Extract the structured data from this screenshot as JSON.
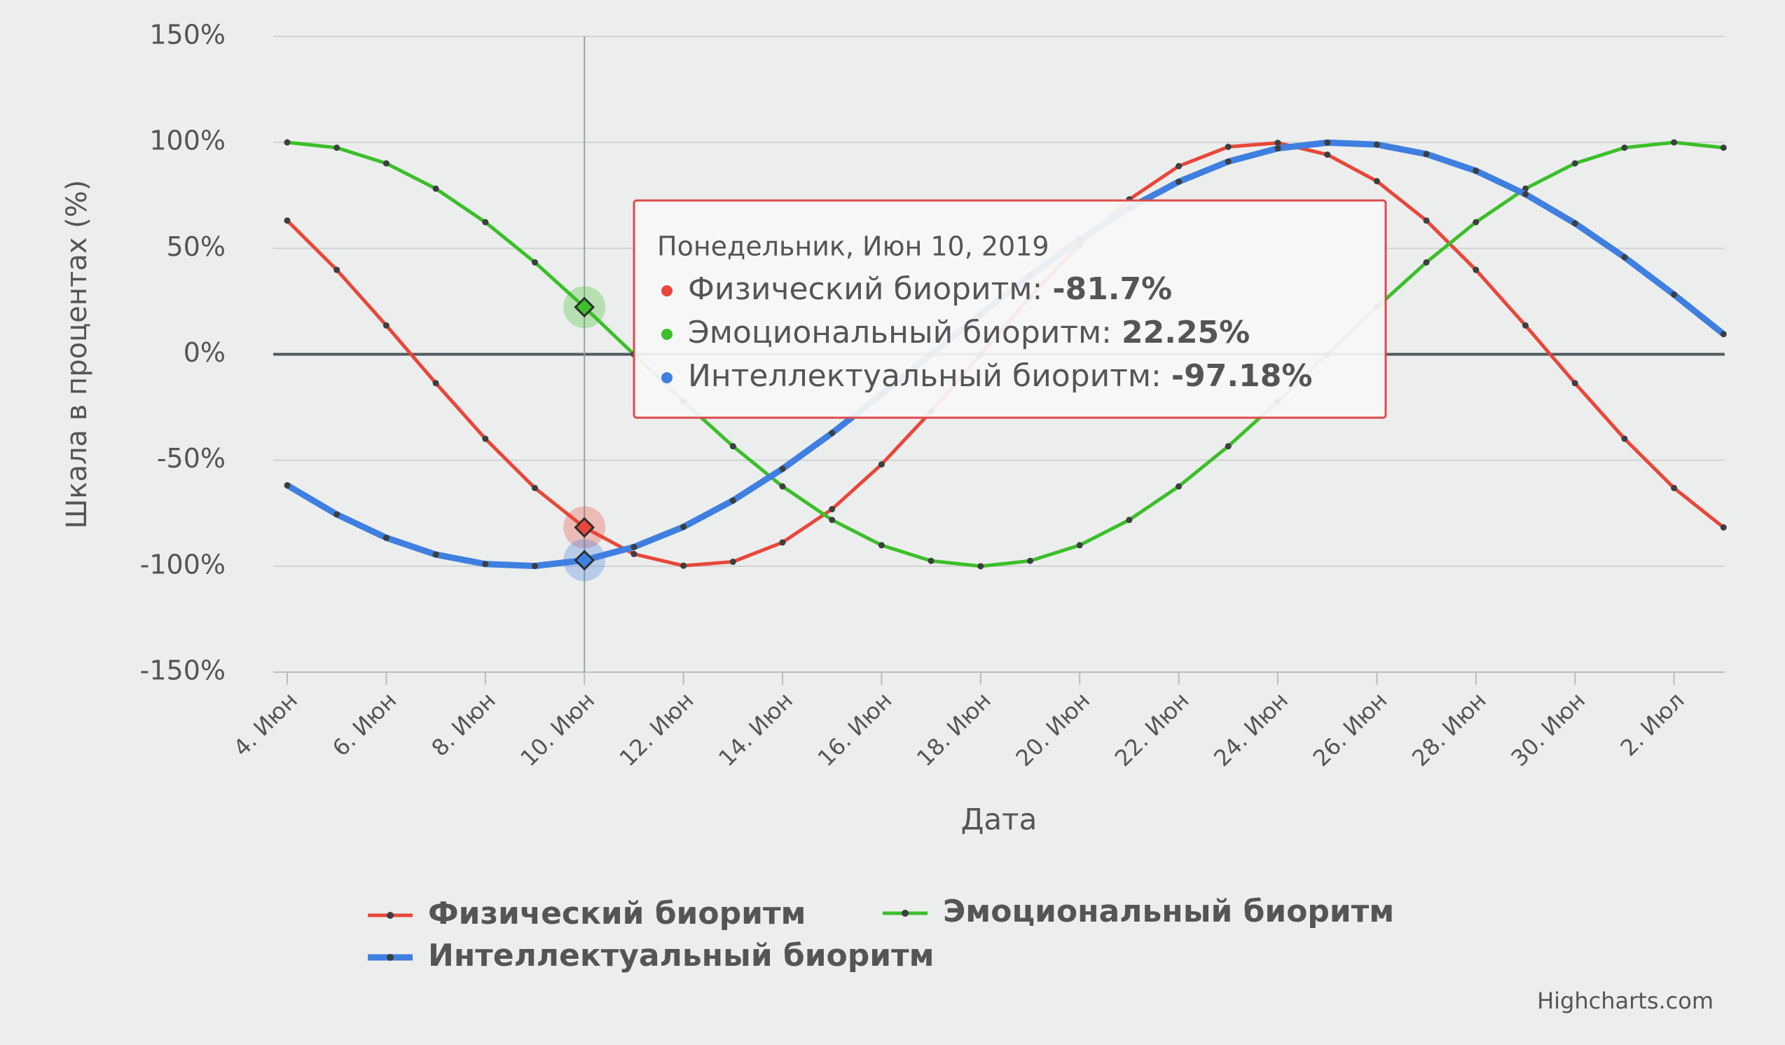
{
  "chart_data": {
    "type": "line",
    "y_axis_title": "Шкала в процентах (%)",
    "x_axis_title": "Дата",
    "credits": "Highcharts.com",
    "categories": [
      "4. Июн",
      null,
      "6. Июн",
      null,
      "8. Июн",
      null,
      "10. Июн",
      null,
      "12. Июн",
      null,
      "14. Июн",
      null,
      "16. Июн",
      null,
      "18. Июн",
      null,
      "20. Июн",
      null,
      "22. Июн",
      null,
      "24. Июн",
      null,
      "26. Июн",
      null,
      "28. Июн",
      null,
      "30. Июн",
      null,
      "2. Июл",
      null
    ],
    "series": [
      {
        "name": "Физический биоритм",
        "color": "#e8473a",
        "values": [
          63.11,
          39.84,
          13.62,
          -13.62,
          -39.84,
          -63.11,
          -81.7,
          -94.23,
          -99.77,
          -97.91,
          -88.79,
          -73.08,
          -51.96,
          -26.98,
          0,
          26.98,
          51.96,
          73.08,
          88.79,
          97.91,
          99.77,
          94.23,
          81.7,
          63.11,
          39.84,
          13.62,
          -13.62,
          -39.84,
          -63.11,
          -81.7
        ]
      },
      {
        "name": "Эмоциональный биоритм",
        "color": "#3cbf2a",
        "values": [
          100,
          97.49,
          90.1,
          78.18,
          62.35,
          43.39,
          22.25,
          0,
          -22.25,
          -43.39,
          -62.35,
          -78.18,
          -90.1,
          -97.49,
          -100,
          -97.49,
          -90.1,
          -78.18,
          -62.35,
          -43.39,
          -22.25,
          0,
          22.25,
          43.39,
          62.35,
          78.18,
          90.1,
          97.49,
          100,
          97.49
        ]
      },
      {
        "name": "Интеллектуальный биоритм",
        "color": "#3f7fe0",
        "values": [
          -61.82,
          -75.57,
          -86.6,
          -94.5,
          -98.98,
          -99.89,
          -97.18,
          -90.96,
          -81.46,
          -69.01,
          -54.06,
          -37.17,
          -18.93,
          0,
          18.93,
          37.17,
          54.06,
          69.01,
          81.46,
          90.96,
          97.18,
          99.89,
          98.98,
          94.5,
          86.6,
          75.57,
          61.82,
          45.82,
          28.17,
          9.51
        ]
      }
    ],
    "ylim": [
      -150,
      150
    ],
    "yticks": [
      {
        "value": -150,
        "label": "-150%"
      },
      {
        "value": -100,
        "label": "-100%"
      },
      {
        "value": -50,
        "label": "-50%"
      },
      {
        "value": 0,
        "label": "0%"
      },
      {
        "value": 50,
        "label": "50%"
      },
      {
        "value": 100,
        "label": "100%"
      },
      {
        "value": 150,
        "label": "150%"
      }
    ],
    "grid": true,
    "legend": "bottom",
    "tooltip": {
      "header": "Понедельник, Июн 10, 2019",
      "rows": [
        {
          "label": "Физический биоритм:",
          "value": -81.7,
          "value_label": "-81.7%"
        },
        {
          "label": "Эмоциональный биоритм:",
          "value": 22.25,
          "value_label": "22.25%"
        },
        {
          "label": "Интеллектуальный биоритм:",
          "value": -97.18,
          "value_label": "-97.18%"
        }
      ]
    }
  }
}
